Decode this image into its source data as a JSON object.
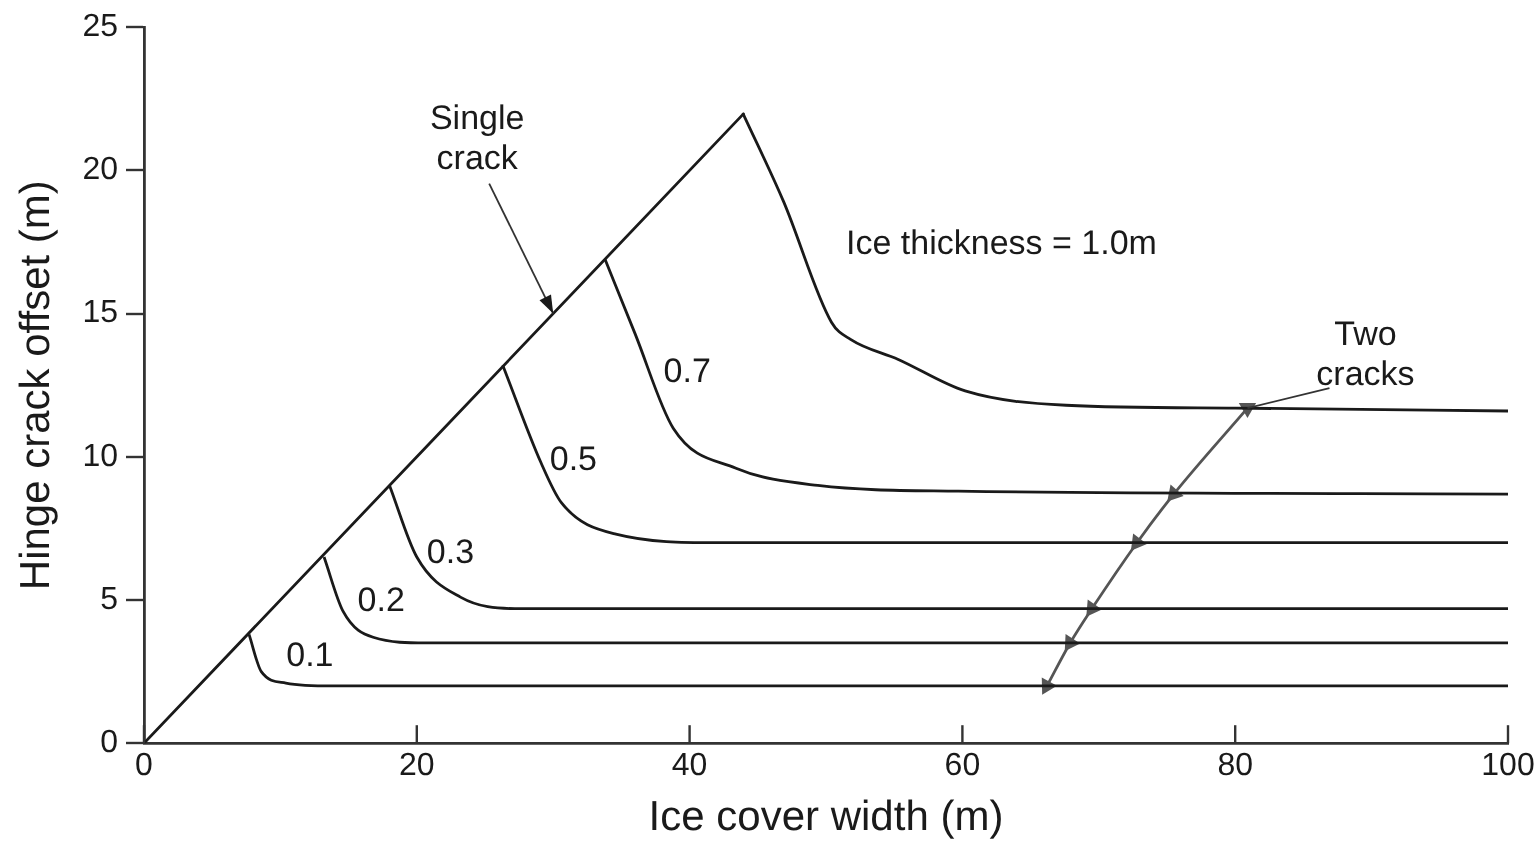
{
  "chart_data": {
    "type": "line",
    "xlabel": "Ice cover width (m)",
    "ylabel": "Hinge crack offset (m)",
    "xlim": [
      0,
      100
    ],
    "xticks": [
      0,
      20,
      40,
      60,
      80,
      100
    ],
    "ylim": [
      0,
      25
    ],
    "yticks": [
      0,
      5,
      10,
      15,
      20,
      25
    ],
    "grid": false,
    "legend": false,
    "marker": "none",
    "line_style": "solid",
    "series": [
      {
        "color": "#1a1a1a",
        "x": [
          0,
          44
        ],
        "values": [
          0,
          22
        ]
      },
      {
        "name": "0.1",
        "color": "#1a1a1a",
        "x": [
          7.7,
          8.6,
          10.4,
          13.8,
          30,
          60,
          100
        ],
        "values": [
          3.8,
          2.5,
          2.1,
          2.0,
          2.0,
          2.0,
          2.0
        ]
      },
      {
        "name": "0.2",
        "color": "#1a1a1a",
        "x": [
          13.2,
          14.6,
          16.8,
          20.7,
          40,
          70,
          100
        ],
        "values": [
          6.5,
          4.6,
          3.7,
          3.5,
          3.5,
          3.5,
          3.5
        ]
      },
      {
        "name": "0.3",
        "color": "#1a1a1a",
        "x": [
          18.0,
          20.0,
          23.2,
          27.2,
          50,
          100
        ],
        "values": [
          9.0,
          6.5,
          5.1,
          4.7,
          4.7,
          4.7
        ]
      },
      {
        "name": "0.5",
        "color": "#1a1a1a",
        "x": [
          26.3,
          29.1,
          30.6,
          34.6,
          42.0,
          60,
          100
        ],
        "values": [
          13.2,
          9.8,
          8.4,
          7.3,
          7.0,
          7.0,
          7.0
        ]
      },
      {
        "name": "0.7",
        "color": "#1a1a1a",
        "x": [
          33.8,
          36.0,
          38.8,
          43.4,
          49.4,
          59.7,
          100
        ],
        "values": [
          16.9,
          14.3,
          11.0,
          9.6,
          9.0,
          8.8,
          8.7
        ]
      },
      {
        "name": "Ice thickness = 1.0m",
        "color": "#1a1a1a",
        "x": [
          43.9,
          46.9,
          50.4,
          51.8,
          55.3,
          60.2,
          67.6,
          80.0,
          100
        ],
        "values": [
          22.0,
          18.9,
          14.7,
          14.1,
          13.4,
          12.3,
          11.8,
          11.7,
          11.6
        ]
      },
      {
        "color": "#555555",
        "marker": "triangle",
        "x": [
          80.9,
          75.5,
          72.8,
          69.5,
          67.9,
          66.2
        ],
        "values": [
          11.7,
          8.7,
          7.0,
          4.7,
          3.5,
          2.0
        ]
      }
    ],
    "annotations": [
      {
        "text": "Single crack",
        "x": 30,
        "y": 15
      },
      {
        "text": "Two cracks",
        "x": 80.9,
        "y": 11.7
      }
    ]
  }
}
